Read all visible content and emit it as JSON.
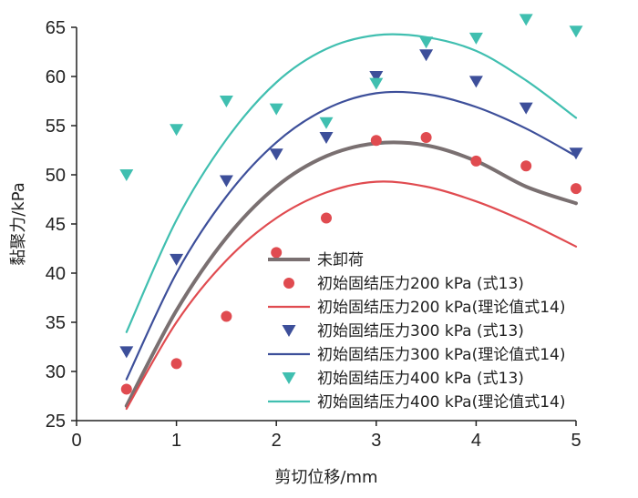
{
  "chart_data": {
    "type": "scatter",
    "title": "",
    "xlabel": "剪切位移/mm",
    "ylabel": "黏聚力/kPa",
    "xlim": [
      0,
      5
    ],
    "ylim": [
      25,
      65
    ],
    "xticks": [
      0,
      1,
      2,
      3,
      4,
      5
    ],
    "yticks": [
      25,
      30,
      35,
      40,
      45,
      50,
      55,
      60,
      65
    ],
    "x": [
      0.5,
      1,
      1.5,
      2,
      2.5,
      3,
      3.5,
      4,
      4.5,
      5
    ],
    "legend_position": "bottom-right",
    "series": [
      {
        "name": "未卸荷",
        "kind": "curve",
        "color": "#7a7071",
        "curve_x": [
          0.5,
          1.0,
          1.5,
          2.0,
          2.5,
          3.0,
          3.5,
          4.0,
          4.5,
          5.0
        ],
        "curve_y": [
          26.5,
          36.2,
          43.6,
          48.8,
          51.9,
          53.2,
          53.0,
          51.4,
          48.8,
          47.1
        ]
      },
      {
        "name": "初始固结压力200 kPa (式13)",
        "kind": "scatter",
        "marker": "circle",
        "color": "#e04b50",
        "values": [
          28.2,
          30.8,
          35.6,
          42.1,
          45.6,
          53.5,
          53.8,
          51.4,
          50.9,
          48.6
        ]
      },
      {
        "name": "初始固结压力200 kPa(理论值式14)",
        "kind": "curve",
        "color": "#e04b50",
        "curve_x": [
          0.5,
          1.0,
          1.5,
          2.0,
          2.5,
          3.0,
          3.5,
          4.0,
          4.5,
          5.0
        ],
        "curve_y": [
          26.2,
          35.0,
          41.3,
          45.6,
          48.2,
          49.3,
          48.8,
          47.3,
          45.2,
          42.7
        ]
      },
      {
        "name": "初始固结压力300 kPa (式13)",
        "kind": "scatter",
        "marker": "triangle-down",
        "color": "#3d4f9a",
        "values": [
          32.0,
          41.4,
          49.4,
          52.1,
          53.8,
          60.0,
          62.2,
          59.5,
          56.8,
          52.2
        ]
      },
      {
        "name": "初始固结压力300 kPa(理论值式14)",
        "kind": "curve",
        "color": "#3d4f9a",
        "curve_x": [
          0.5,
          1.0,
          1.5,
          2.0,
          2.5,
          3.0,
          3.5,
          4.0,
          4.5,
          5.0
        ],
        "curve_y": [
          29.2,
          40.0,
          47.8,
          53.3,
          56.7,
          58.3,
          58.2,
          56.9,
          54.7,
          51.9
        ]
      },
      {
        "name": "初始固结压力400 kPa (式13)",
        "kind": "scatter",
        "marker": "triangle-down",
        "color": "#40bfb0",
        "values": [
          50.0,
          54.6,
          57.5,
          56.7,
          55.3,
          59.3,
          63.5,
          63.9,
          65.8,
          64.6
        ]
      },
      {
        "name": "初始固结压力400 kPa(理论值式14)",
        "kind": "curve",
        "color": "#40bfb0",
        "curve_x": [
          0.5,
          1.0,
          1.5,
          2.0,
          2.5,
          3.0,
          3.5,
          4.0,
          4.5,
          5.0
        ],
        "curve_y": [
          34.0,
          45.4,
          53.6,
          59.4,
          62.8,
          64.2,
          64.0,
          62.6,
          59.6,
          55.8
        ]
      }
    ]
  }
}
